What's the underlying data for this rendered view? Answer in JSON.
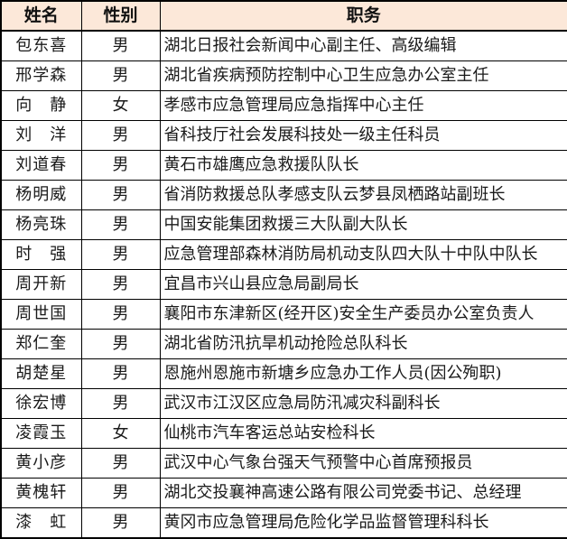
{
  "table": {
    "columns": [
      {
        "key": "name",
        "label": "姓名"
      },
      {
        "key": "gender",
        "label": "性别"
      },
      {
        "key": "position",
        "label": "职务"
      }
    ],
    "rows": [
      {
        "name": "包东喜",
        "gender": "男",
        "position": "湖北日报社会新闻中心副主任、高级编辑"
      },
      {
        "name": "邢学森",
        "gender": "男",
        "position": "湖北省疾病预防控制中心卫生应急办公室主任"
      },
      {
        "name": "向　静",
        "gender": "女",
        "position": "孝感市应急管理局应急指挥中心主任"
      },
      {
        "name": "刘　洋",
        "gender": "男",
        "position": "省科技厅社会发展科技处一级主任科员"
      },
      {
        "name": "刘道春",
        "gender": "男",
        "position": "黄石市雄鹰应急救援队队长"
      },
      {
        "name": "杨明威",
        "gender": "男",
        "position": "省消防救援总队孝感支队云梦县凤栖路站副班长"
      },
      {
        "name": "杨亮珠",
        "gender": "男",
        "position": "中国安能集团救援三大队副大队长"
      },
      {
        "name": "时　强",
        "gender": "男",
        "position": "应急管理部森林消防局机动支队四大队十中队中队长"
      },
      {
        "name": "周开新",
        "gender": "男",
        "position": "宜昌市兴山县应急局副局长"
      },
      {
        "name": "周世国",
        "gender": "男",
        "position": "襄阳市东津新区(经开区)安全生产委员办公室负责人"
      },
      {
        "name": "郑仁奎",
        "gender": "男",
        "position": "湖北省防汛抗旱机动抢险总队科长"
      },
      {
        "name": "胡楚星",
        "gender": "男",
        "position": "恩施州恩施市新塘乡应急办工作人员(因公殉职)"
      },
      {
        "name": "徐宏博",
        "gender": "男",
        "position": "武汉市江汉区应急局防汛减灾科副科长"
      },
      {
        "name": "凌霞玉",
        "gender": "女",
        "position": "仙桃市汽车客运总站安检科长"
      },
      {
        "name": "黄小彦",
        "gender": "男",
        "position": "武汉中心气象台强天气预警中心首席预报员"
      },
      {
        "name": "黄槐轩",
        "gender": "男",
        "position": "湖北交投襄神高速公路有限公司党委书记、总经理"
      },
      {
        "name": "漆　虹",
        "gender": "男",
        "position": "黄冈市应急管理局危险化学品监督管理科科长"
      }
    ]
  },
  "colors": {
    "header_bg": "#FCE8D9",
    "border": "#000000",
    "text": "#1A1A1A"
  }
}
